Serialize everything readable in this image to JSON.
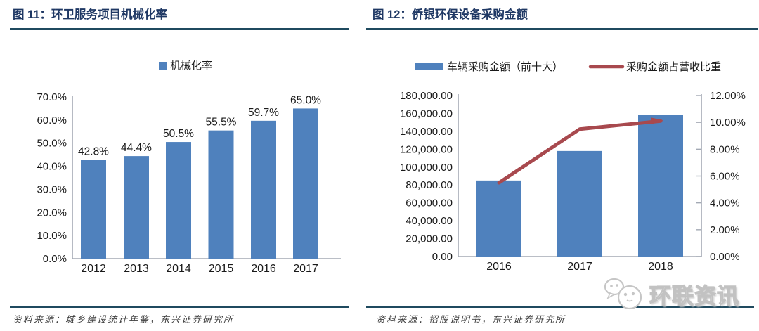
{
  "panels": [
    {
      "title": "图 11：环卫服务项目机械化率",
      "source": "资料来源：城乡建设统计年鉴，东兴证券研究所"
    },
    {
      "title": "图 12：侨银环保设备采购金额",
      "source": "资料来源：招股说明书，东兴证券研究所"
    }
  ],
  "watermark": {
    "text": "环联资讯",
    "icon": "chat-bubbles-icon"
  },
  "colors": {
    "bar_blue": "#4F81BD",
    "line_red": "#A8494E",
    "title_navy": "#1F3864",
    "rule": "#1F4A5F",
    "axis_gray": "#A3A9B4",
    "label_black": "#1A1A1A"
  },
  "chart_data": [
    {
      "type": "bar",
      "title": "环卫服务项目机械化率",
      "legend": [
        {
          "name": "机械化率",
          "color": "#4F81BD",
          "marker": "square"
        }
      ],
      "legend_position": "top-center",
      "categories": [
        "2012",
        "2013",
        "2014",
        "2015",
        "2016",
        "2017"
      ],
      "values": [
        42.8,
        44.4,
        50.5,
        55.5,
        59.7,
        65.0
      ],
      "data_labels": [
        "42.8%",
        "44.4%",
        "50.5%",
        "55.5%",
        "59.7%",
        "65.0%"
      ],
      "ylabel": "",
      "ylim": [
        0,
        70
      ],
      "ytick_labels": [
        "0.0%",
        "10.0%",
        "20.0%",
        "30.0%",
        "40.0%",
        "50.0%",
        "60.0%",
        "70.0%"
      ],
      "grid": false
    },
    {
      "type": "bar+line",
      "title": "侨银环保设备采购金额",
      "legend_position": "top-center",
      "categories": [
        "2016",
        "2017",
        "2018"
      ],
      "series": [
        {
          "name": "车辆采购金额（前十大）",
          "type": "bar",
          "axis": "left",
          "color": "#4F81BD",
          "values": [
            85000,
            118000,
            158000
          ]
        },
        {
          "name": "采购金额占营收比重",
          "type": "line",
          "axis": "right",
          "color": "#A8494E",
          "values": [
            5.5,
            9.5,
            10.1
          ]
        }
      ],
      "left_ylim": [
        0,
        180000
      ],
      "left_ytick_labels": [
        "0.00",
        "20,000.00",
        "40,000.00",
        "60,000.00",
        "80,000.00",
        "100,000.00",
        "120,000.00",
        "140,000.00",
        "160,000.00",
        "180,000.00"
      ],
      "right_ylim": [
        0,
        12
      ],
      "right_ytick_labels": [
        "0.00%",
        "2.00%",
        "4.00%",
        "6.00%",
        "8.00%",
        "10.00%",
        "12.00%"
      ],
      "grid": false
    }
  ]
}
